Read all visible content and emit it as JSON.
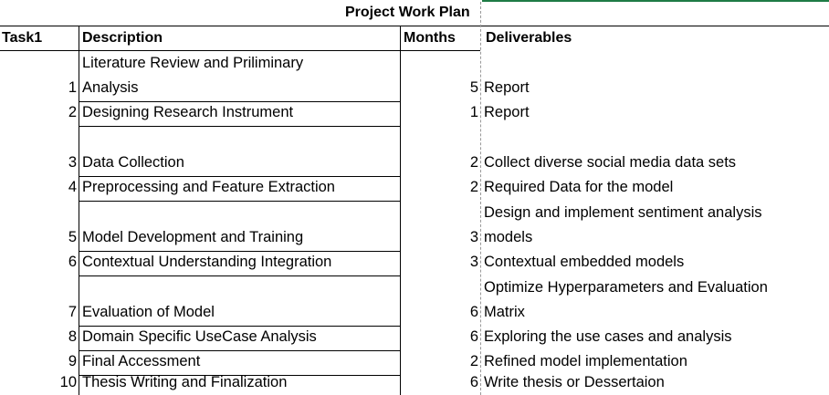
{
  "title": "Project Work Plan",
  "headers": {
    "task": "Task1",
    "description": "Description",
    "months": "Months",
    "deliverables": "Deliverables"
  },
  "rows": [
    {
      "task": "1",
      "desc_top": "Literature Review and Priliminary",
      "desc": "Analysis",
      "months": "5",
      "deliv_top": "",
      "deliv": "Report"
    },
    {
      "task": "2",
      "desc_top": "",
      "desc": "Designing Research Instrument",
      "months": "1",
      "deliv_top": "",
      "deliv": "Report"
    },
    {
      "task": "3",
      "desc_top": "",
      "desc": "Data Collection",
      "months": "2",
      "deliv_top": "",
      "deliv": "Collect diverse social media data sets"
    },
    {
      "task": "4",
      "desc_top": "",
      "desc": "Preprocessing and Feature Extraction",
      "months": "2",
      "deliv_top": "",
      "deliv": "Required Data for the model"
    },
    {
      "task": "5",
      "desc_top": "",
      "desc": "Model Development and Training",
      "months": "3",
      "deliv_top": "Design and implement sentiment analysis",
      "deliv": "models"
    },
    {
      "task": "6",
      "desc_top": "",
      "desc": "Contextual Understanding Integration",
      "months": "3",
      "deliv_top": "",
      "deliv": "Contextual embedded models"
    },
    {
      "task": "7",
      "desc_top": "",
      "desc": "Evaluation of Model",
      "months": "6",
      "deliv_top": "Optimize Hyperparameters and Evaluation",
      "deliv": "Matrix"
    },
    {
      "task": "8",
      "desc_top": "",
      "desc": "Domain Specific UseCase Analysis",
      "months": "6",
      "deliv_top": "",
      "deliv": "Exploring the use cases and analysis"
    },
    {
      "task": "9",
      "desc_top": "",
      "desc": "Final Accessment",
      "months": "2",
      "deliv_top": "",
      "deliv": "Refined model implementation"
    },
    {
      "task": "10",
      "desc_top": "",
      "desc": "Thesis Writing and Finalization",
      "months": "6",
      "deliv_top": "",
      "deliv": "Write thesis or Dessertaion"
    }
  ]
}
